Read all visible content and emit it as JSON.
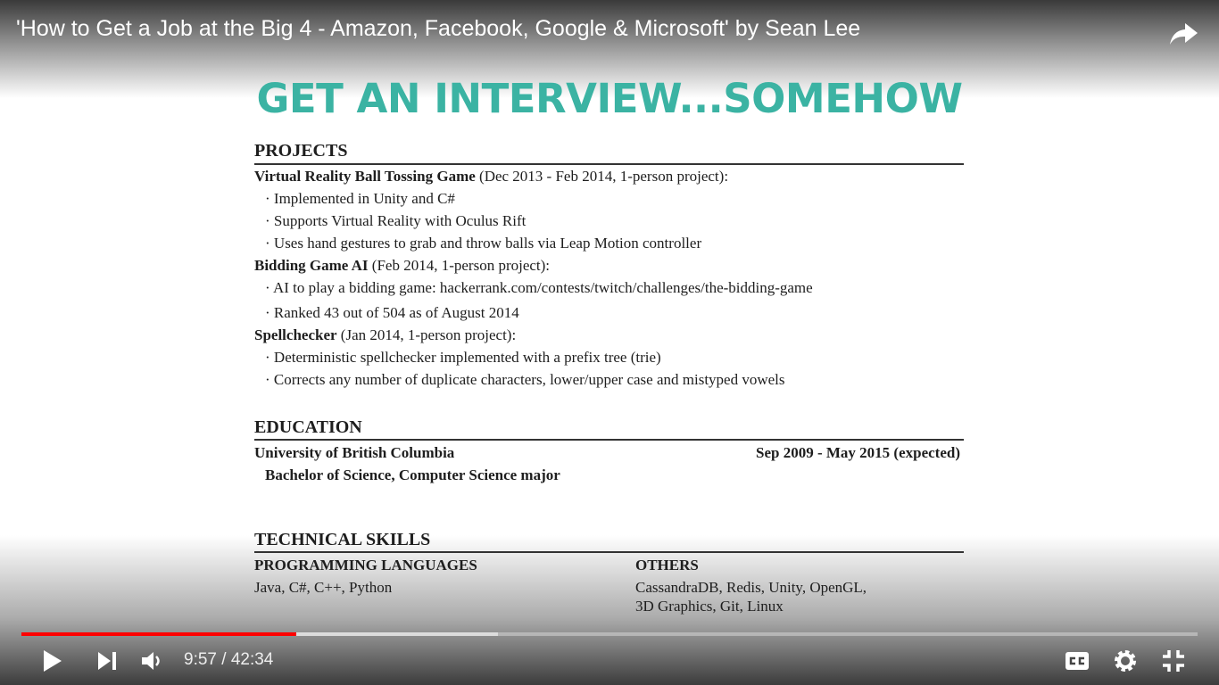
{
  "player": {
    "title": "'How to Get a Job at the Big 4 - Amazon, Facebook, Google & Microsoft' by Sean Lee",
    "time": "9:57 / 42:34",
    "progress": {
      "played": 0.234,
      "loaded": 0.405
    }
  },
  "slide": {
    "heading": "GET AN INTERVIEW...SOMEHOW",
    "projects": {
      "title": "PROJECTS",
      "items": [
        {
          "name": "Virtual Reality Ball Tossing Game",
          "meta": "(Dec 2013 - Feb 2014, 1-person project):",
          "bullets": [
            "· Implemented in Unity and C#",
            "· Supports Virtual Reality with Oculus Rift",
            "· Uses hand gestures to grab and throw balls via Leap Motion controller"
          ]
        },
        {
          "name": "Bidding Game AI",
          "meta": "(Feb 2014, 1-person project):",
          "bullets": [
            "· AI to play a bidding game: hackerrank.com/contests/twitch/challenges/the-bidding-game",
            "· Ranked 43 out of 504 as of August 2014"
          ]
        },
        {
          "name": "Spellchecker",
          "meta": "(Jan 2014, 1-person project):",
          "bullets": [
            "· Deterministic spellchecker implemented with a prefix tree (trie)",
            "· Corrects any number of duplicate characters, lower/upper case and mistyped vowels"
          ]
        }
      ]
    },
    "education": {
      "title": "EDUCATION",
      "school": "University of British Columbia",
      "dates": "Sep 2009 - May 2015 (expected)",
      "degree": "Bachelor of Science, Computer Science major"
    },
    "skills": {
      "title": "TECHNICAL SKILLS",
      "columns": [
        {
          "title": "PROGRAMMING LANGUAGES",
          "lines": [
            "Java, C#, C++, Python"
          ]
        },
        {
          "title": "OTHERS",
          "lines": [
            "CassandraDB, Redis, Unity, OpenGL,",
            "3D Graphics, Git, Linux"
          ]
        }
      ]
    }
  }
}
